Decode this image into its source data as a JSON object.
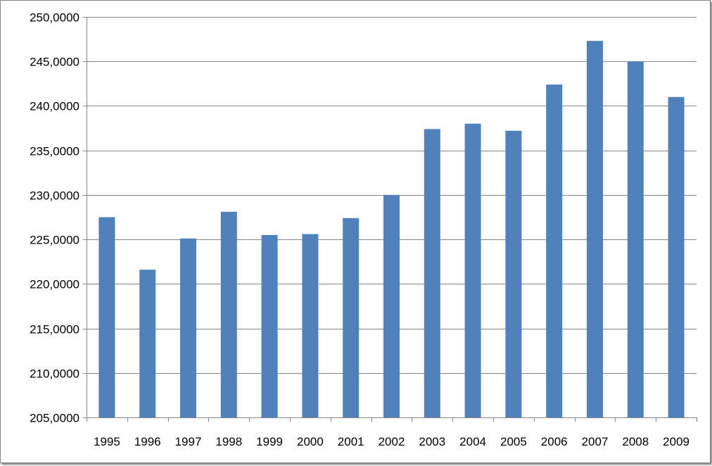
{
  "chart_data": {
    "type": "bar",
    "categories": [
      "1995",
      "1996",
      "1997",
      "1998",
      "1999",
      "2000",
      "2001",
      "2002",
      "2003",
      "2004",
      "2005",
      "2006",
      "2007",
      "2008",
      "2009"
    ],
    "values": [
      227.5,
      221.6,
      225.1,
      228.1,
      225.5,
      225.6,
      227.4,
      230.0,
      237.4,
      238.0,
      237.2,
      242.4,
      247.3,
      245.0,
      241.0
    ],
    "ylim": [
      205,
      250
    ],
    "yticks": [
      205,
      210,
      215,
      220,
      225,
      230,
      235,
      240,
      245,
      250
    ],
    "ytick_labels": [
      "205,0000",
      "210,0000",
      "215,0000",
      "220,0000",
      "225,0000",
      "230,0000",
      "235,0000",
      "240,0000",
      "245,0000",
      "250,0000"
    ],
    "grid": true,
    "legend": "none",
    "title": "",
    "xlabel": "",
    "ylabel": "",
    "colors": {
      "bar": "#4f81bd",
      "grid": "#868686",
      "axis": "#868686"
    }
  }
}
